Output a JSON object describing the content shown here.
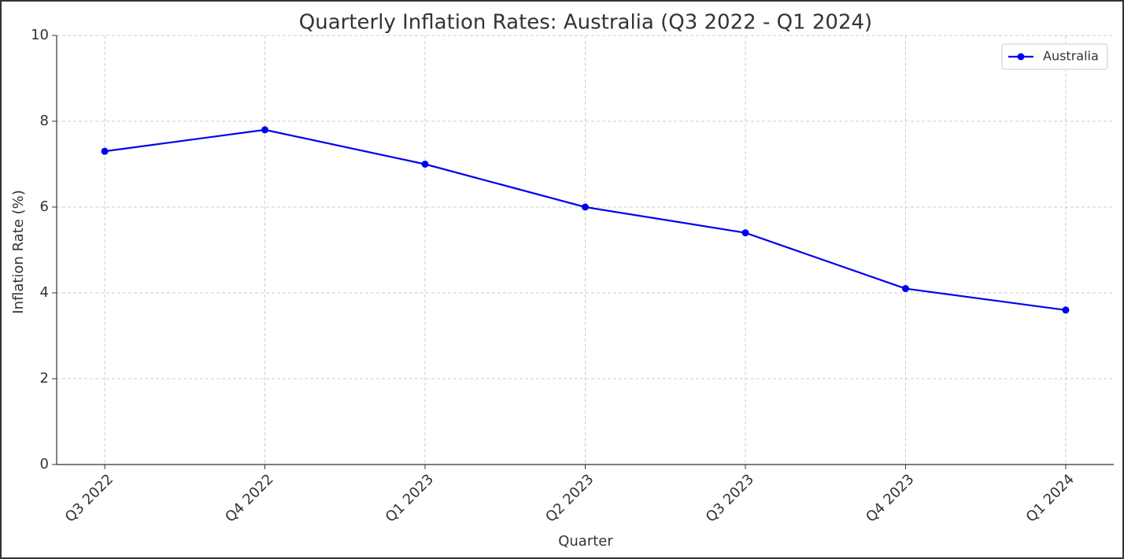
{
  "chart_data": {
    "type": "line",
    "title": "Quarterly Inflation Rates: Australia (Q3 2022 - Q1 2024)",
    "xlabel": "Quarter",
    "ylabel": "Inflation Rate (%)",
    "categories": [
      "Q3 2022",
      "Q4 2022",
      "Q1 2023",
      "Q2 2023",
      "Q3 2023",
      "Q4 2023",
      "Q1 2024"
    ],
    "series": [
      {
        "name": "Australia",
        "color": "#0000ee",
        "values": [
          7.3,
          7.8,
          7.0,
          6.0,
          5.4,
          4.1,
          3.6
        ]
      }
    ],
    "ylim": [
      0,
      10
    ],
    "yticks": [
      0,
      2,
      4,
      6,
      8,
      10
    ],
    "grid": true,
    "legend": "upper right"
  }
}
